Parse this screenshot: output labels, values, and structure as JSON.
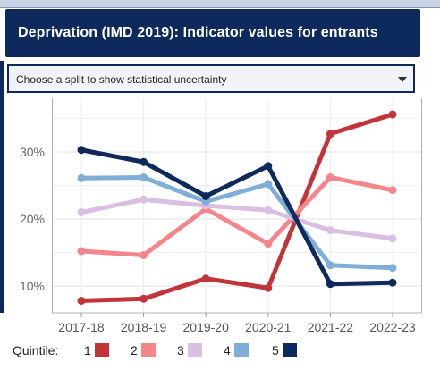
{
  "header": {
    "title": "Deprivation (IMD 2019): Indicator values for entrants"
  },
  "dropdown": {
    "selected": "Choose a split to show statistical uncertainty"
  },
  "legend": {
    "title": "Quintile:"
  },
  "colors": {
    "header_bg": "#0e2a5c",
    "q1": "#c1353a",
    "q2": "#f4858a",
    "q3": "#dbbfe3",
    "q4": "#7faed6",
    "q5": "#0e2a5c"
  },
  "chart_data": {
    "type": "line",
    "categories": [
      "2017-18",
      "2018-19",
      "2019-20",
      "2020-21",
      "2021-22",
      "2022-23"
    ],
    "y_tick_labels": [
      "10%",
      "20%",
      "30%"
    ],
    "y_ticks": [
      10,
      20,
      30
    ],
    "ylim": [
      6,
      38
    ],
    "grid": true,
    "legend_position": "bottom",
    "series": [
      {
        "name": "1",
        "color": "#c1353a",
        "values": [
          7.8,
          8.1,
          11.1,
          9.7,
          32.7,
          35.6
        ]
      },
      {
        "name": "2",
        "color": "#f4858a",
        "values": [
          15.2,
          14.6,
          21.5,
          16.3,
          26.2,
          24.3
        ]
      },
      {
        "name": "3",
        "color": "#dbbfe3",
        "values": [
          21.0,
          22.9,
          22.0,
          21.3,
          18.3,
          17.1
        ]
      },
      {
        "name": "4",
        "color": "#7faed6",
        "values": [
          26.1,
          26.2,
          22.6,
          25.2,
          13.1,
          12.7
        ]
      },
      {
        "name": "5",
        "color": "#0e2a5c",
        "values": [
          30.3,
          28.5,
          23.4,
          27.9,
          10.3,
          10.5
        ]
      }
    ]
  }
}
